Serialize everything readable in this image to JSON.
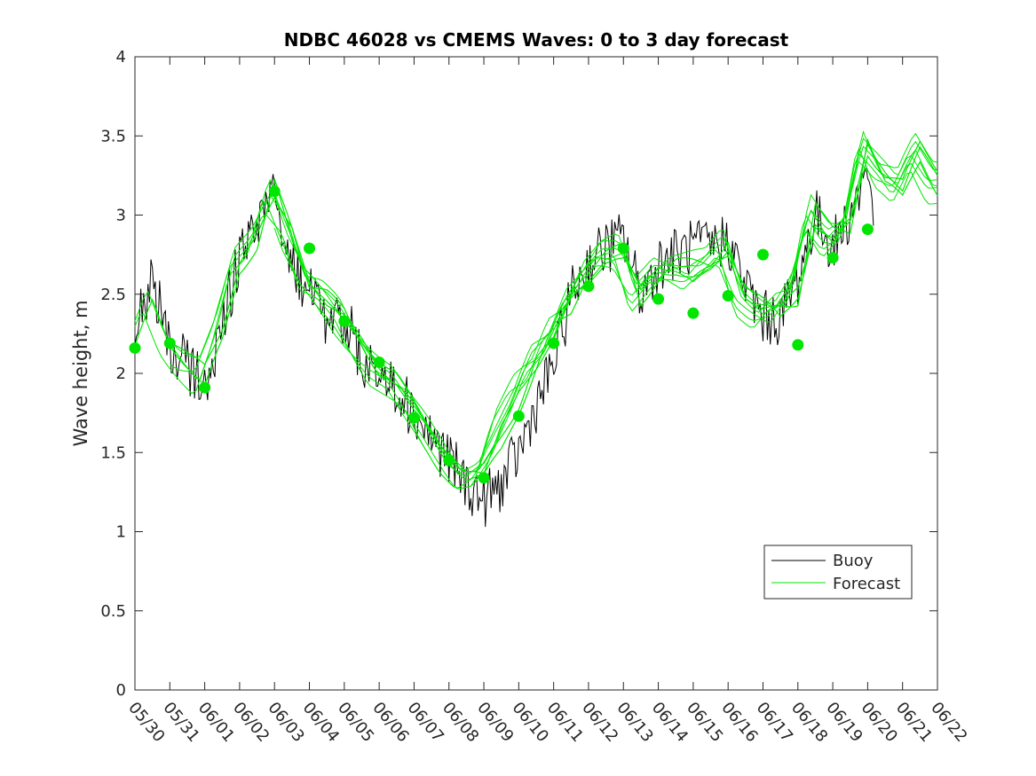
{
  "chart_data": {
    "type": "line",
    "title": "NDBC 46028 vs CMEMS Waves: 0 to 3 day forecast",
    "xlabel": "",
    "ylabel": "Wave height, m",
    "ylim": [
      0,
      4
    ],
    "xlim": [
      "05/30",
      "06/22"
    ],
    "yticks": [
      "0",
      "0.5",
      "1",
      "1.5",
      "2",
      "2.5",
      "3",
      "3.5",
      "4"
    ],
    "xticks": [
      "05/30",
      "05/31",
      "06/01",
      "06/02",
      "06/03",
      "06/04",
      "06/05",
      "06/06",
      "06/07",
      "06/08",
      "06/09",
      "06/10",
      "06/11",
      "06/12",
      "06/13",
      "06/14",
      "06/15",
      "06/16",
      "06/17",
      "06/18",
      "06/19",
      "06/20",
      "06/21",
      "06/22"
    ],
    "legend": {
      "position": "bottom-right",
      "entries": [
        "Buoy",
        "Forecast"
      ]
    },
    "colors": {
      "buoy": "#000000",
      "forecast": "#00e600",
      "marker": "#00e600"
    },
    "series": [
      {
        "name": "Buoy",
        "x_days": [
          0,
          0.5,
          1,
          1.5,
          2,
          2.5,
          3,
          3.5,
          4,
          4.5,
          5,
          5.5,
          6,
          6.5,
          7,
          7.5,
          8,
          8.5,
          9,
          9.5,
          10,
          10.5,
          11,
          11.5,
          12,
          12.5,
          13,
          13.5,
          14,
          14.5,
          15,
          15.5,
          16,
          16.5,
          17,
          17.5,
          18,
          18.5,
          19,
          19.5,
          20,
          20.5,
          21,
          21.2
        ],
        "values": [
          2.3,
          2.6,
          2.15,
          2.05,
          1.9,
          2.3,
          2.75,
          2.9,
          3.1,
          2.7,
          2.5,
          2.3,
          2.35,
          2.1,
          2.0,
          1.9,
          1.75,
          1.6,
          1.45,
          1.3,
          1.2,
          1.3,
          1.5,
          1.8,
          2.05,
          2.5,
          2.7,
          2.8,
          2.85,
          2.5,
          2.7,
          2.75,
          2.8,
          2.8,
          2.85,
          2.55,
          2.35,
          2.35,
          2.6,
          3.0,
          2.8,
          3.0,
          3.3,
          3.0
        ]
      },
      {
        "name": "Forecast",
        "x_days": [
          0,
          0.5,
          1,
          1.5,
          2,
          2.5,
          3,
          3.5,
          4,
          4.5,
          5,
          5.5,
          6,
          6.5,
          7,
          7.5,
          8,
          8.5,
          9,
          9.5,
          10,
          10.5,
          11,
          11.5,
          12,
          12.5,
          13,
          13.5,
          14,
          14.5,
          15,
          15.5,
          16,
          16.5,
          17,
          17.5,
          18,
          18.5,
          19,
          19.5,
          20,
          20.5,
          21,
          21.5,
          22,
          22.5,
          23
        ],
        "values": [
          2.15,
          2.45,
          2.2,
          2.05,
          1.9,
          2.2,
          2.65,
          2.8,
          3.2,
          2.9,
          2.6,
          2.45,
          2.35,
          2.2,
          2.05,
          1.95,
          1.75,
          1.6,
          1.45,
          1.35,
          1.35,
          1.5,
          1.75,
          2.05,
          2.2,
          2.45,
          2.6,
          2.75,
          2.75,
          2.5,
          2.65,
          2.65,
          2.6,
          2.65,
          2.75,
          2.5,
          2.4,
          2.4,
          2.55,
          2.95,
          2.85,
          2.95,
          3.45,
          3.3,
          3.15,
          3.4,
          3.25
        ]
      },
      {
        "name": "Forecast",
        "x_days": [
          4,
          4.5,
          5,
          5.5,
          6,
          6.5,
          7,
          7.5,
          8,
          8.5,
          9,
          9.5,
          10,
          10.5,
          11,
          11.5,
          12,
          12.5,
          13,
          13.5,
          14,
          14.5,
          15,
          15.5,
          16,
          16.5,
          17,
          17.5,
          18,
          18.5,
          19,
          19.5,
          20,
          20.5,
          21,
          21.5,
          22,
          22.5,
          23
        ],
        "values": [
          3.2,
          2.85,
          2.6,
          2.45,
          2.3,
          2.2,
          2.1,
          2.0,
          1.8,
          1.6,
          1.45,
          1.35,
          1.4,
          1.6,
          1.8,
          2.1,
          2.2,
          2.5,
          2.6,
          2.7,
          2.7,
          2.55,
          2.7,
          2.65,
          2.55,
          2.65,
          2.8,
          2.55,
          2.45,
          2.35,
          2.5,
          2.95,
          2.8,
          2.95,
          3.4,
          3.25,
          3.2,
          3.45,
          3.3
        ]
      },
      {
        "name": "Forecast",
        "x_days": [
          1,
          1.5,
          2,
          2.5,
          3,
          3.5,
          4,
          4.5,
          5,
          5.5,
          6,
          6.5,
          7,
          7.5,
          8,
          8.5,
          9,
          9.5,
          10,
          10.5,
          11,
          11.5,
          12,
          12.5,
          13,
          13.5,
          14,
          14.5,
          15,
          15.5,
          16,
          16.5,
          17,
          17.5,
          18,
          18.5,
          19,
          19.5,
          20,
          20.5,
          21,
          21.5,
          22,
          22.5,
          23
        ],
        "values": [
          2.2,
          2.1,
          2.05,
          2.3,
          2.7,
          2.85,
          3.1,
          2.95,
          2.55,
          2.5,
          2.4,
          2.2,
          2.0,
          1.9,
          1.8,
          1.65,
          1.5,
          1.35,
          1.35,
          1.7,
          1.9,
          2.0,
          2.3,
          2.4,
          2.65,
          2.75,
          2.8,
          2.45,
          2.6,
          2.7,
          2.7,
          2.7,
          2.85,
          2.45,
          2.35,
          2.45,
          2.45,
          3.05,
          2.9,
          2.9,
          3.5,
          3.2,
          3.1,
          3.35,
          3.15
        ]
      }
    ],
    "markers": {
      "name": "Forecast",
      "x_days": [
        0,
        1,
        2,
        4,
        5,
        6,
        7,
        8,
        9,
        10,
        11,
        12,
        13,
        14,
        15,
        16,
        17,
        18,
        19,
        20,
        21
      ],
      "values": [
        2.16,
        2.19,
        1.91,
        3.15,
        2.79,
        2.33,
        2.07,
        1.72,
        1.45,
        1.34,
        1.73,
        2.19,
        2.55,
        2.79,
        2.47,
        2.38,
        2.49,
        2.75,
        2.18,
        2.73,
        2.91
      ]
    }
  }
}
